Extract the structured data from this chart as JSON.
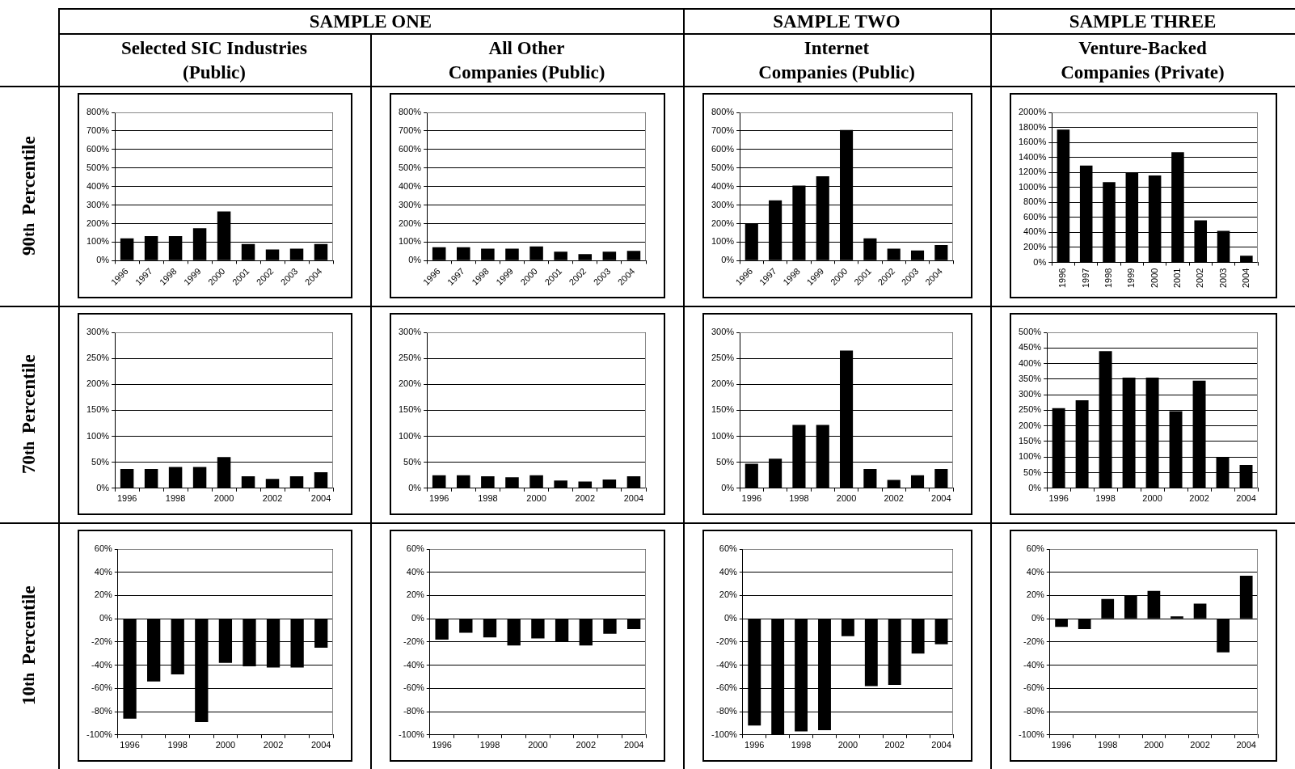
{
  "chart_data": [
    {
      "type": "other",
      "annotations": [
        "SAMPLE ONE",
        "SAMPLE TWO",
        "SAMPLE THREE",
        "Selected SIC Industries\n(Public)",
        "All Other\nCompanies (Public)",
        "Internet\nCompanies (Public)",
        "Venture-Backed\nCompanies (Private)",
        "90$^{th}$ Percentile",
        "70$^{th}$ Percentile",
        "10$^{th}$ Percentile"
      ]
    },
    {
      "type": "bar",
      "categories": [
        "1996",
        "1997",
        "1998",
        "1999",
        "2000",
        "2001",
        "2002",
        "2003",
        "2004"
      ],
      "values": [
        120,
        133,
        133,
        175,
        265,
        90,
        60,
        65,
        90
      ],
      "color": "#000000",
      "ylim": [
        0,
        800
      ],
      "yticks": [
        {
          "value": 0,
          "label": "0%"
        },
        {
          "value": 100,
          "label": "100%"
        },
        {
          "value": 200,
          "label": "200%"
        },
        {
          "value": 300,
          "label": "300%"
        },
        {
          "value": 400,
          "label": "400%"
        },
        {
          "value": 500,
          "label": "500%"
        },
        {
          "value": 600,
          "label": "600%"
        },
        {
          "value": 700,
          "label": "700%"
        },
        {
          "value": 800,
          "label": "800%"
        }
      ],
      "grid": "y"
    },
    {
      "type": "bar",
      "categories": [
        "1996",
        "1997",
        "1998",
        "1999",
        "2000",
        "2001",
        "2002",
        "2003",
        "2004"
      ],
      "values": [
        72,
        72,
        65,
        65,
        77,
        48,
        35,
        48,
        53
      ],
      "color": "#000000",
      "ylim": [
        0,
        800
      ],
      "yticks": [
        {
          "value": 0,
          "label": "0%"
        },
        {
          "value": 100,
          "label": "100%"
        },
        {
          "value": 200,
          "label": "200%"
        },
        {
          "value": 300,
          "label": "300%"
        },
        {
          "value": 400,
          "label": "400%"
        },
        {
          "value": 500,
          "label": "500%"
        },
        {
          "value": 600,
          "label": "600%"
        },
        {
          "value": 700,
          "label": "700%"
        },
        {
          "value": 800,
          "label": "800%"
        }
      ],
      "grid": "y"
    },
    {
      "type": "bar",
      "categories": [
        "1996",
        "1997",
        "1998",
        "1999",
        "2000",
        "2001",
        "2002",
        "2003",
        "2004"
      ],
      "values": [
        200,
        325,
        405,
        455,
        705,
        120,
        65,
        55,
        85
      ],
      "color": "#000000",
      "ylim": [
        0,
        800
      ],
      "yticks": [
        {
          "value": 0,
          "label": "0%"
        },
        {
          "value": 100,
          "label": "100%"
        },
        {
          "value": 200,
          "label": "200%"
        },
        {
          "value": 300,
          "label": "300%"
        },
        {
          "value": 400,
          "label": "400%"
        },
        {
          "value": 500,
          "label": "500%"
        },
        {
          "value": 600,
          "label": "600%"
        },
        {
          "value": 700,
          "label": "700%"
        },
        {
          "value": 800,
          "label": "800%"
        }
      ],
      "grid": "y"
    },
    {
      "type": "bar",
      "categories": [
        "1996",
        "1997",
        "1998",
        "1999",
        "2000",
        "2001",
        "2002",
        "2003",
        "2004"
      ],
      "values": [
        1770,
        1290,
        1070,
        1200,
        1160,
        1470,
        560,
        420,
        90
      ],
      "color": "#000000",
      "ylim": [
        0,
        2000
      ],
      "yticks": [
        {
          "value": 0,
          "label": "0%"
        },
        {
          "value": 200,
          "label": "200%"
        },
        {
          "value": 400,
          "label": "400%"
        },
        {
          "value": 600,
          "label": "600%"
        },
        {
          "value": 800,
          "label": "800%"
        },
        {
          "value": 1000,
          "label": "1000%"
        },
        {
          "value": 1200,
          "label": "1200%"
        },
        {
          "value": 1400,
          "label": "1400%"
        },
        {
          "value": 1600,
          "label": "1600%"
        },
        {
          "value": 1800,
          "label": "1800%"
        },
        {
          "value": 2000,
          "label": "2000%"
        }
      ],
      "grid": "y"
    },
    {
      "type": "bar",
      "categories": [
        "1996",
        null,
        "1998",
        null,
        "2000",
        null,
        "2002",
        null,
        "2004"
      ],
      "values": [
        37,
        37,
        41,
        41,
        60,
        23,
        18,
        23,
        31
      ],
      "color": "#000000",
      "ylim": [
        0,
        300
      ],
      "yticks": [
        {
          "value": 0,
          "label": "0%"
        },
        {
          "value": 50,
          "label": "50%"
        },
        {
          "value": 100,
          "label": "100%"
        },
        {
          "value": 150,
          "label": "150%"
        },
        {
          "value": 200,
          "label": "200%"
        },
        {
          "value": 250,
          "label": "250%"
        },
        {
          "value": 300,
          "label": "300%"
        }
      ],
      "grid": "y"
    },
    {
      "type": "bar",
      "categories": [
        "1996",
        null,
        "1998",
        null,
        "2000",
        null,
        "2002",
        null,
        "2004"
      ],
      "values": [
        25,
        25,
        23,
        21,
        25,
        15,
        13,
        17,
        23
      ],
      "color": "#000000",
      "ylim": [
        0,
        300
      ],
      "yticks": [
        {
          "value": 0,
          "label": "0%"
        },
        {
          "value": 50,
          "label": "50%"
        },
        {
          "value": 100,
          "label": "100%"
        },
        {
          "value": 150,
          "label": "150%"
        },
        {
          "value": 200,
          "label": "200%"
        },
        {
          "value": 250,
          "label": "250%"
        },
        {
          "value": 300,
          "label": "300%"
        }
      ],
      "grid": "y"
    },
    {
      "type": "bar",
      "categories": [
        "1996",
        null,
        "1998",
        null,
        "2000",
        null,
        "2002",
        null,
        "2004"
      ],
      "values": [
        47,
        57,
        122,
        122,
        265,
        37,
        16,
        25,
        37
      ],
      "color": "#000000",
      "ylim": [
        0,
        300
      ],
      "yticks": [
        {
          "value": 0,
          "label": "0%"
        },
        {
          "value": 50,
          "label": "50%"
        },
        {
          "value": 100,
          "label": "100%"
        },
        {
          "value": 150,
          "label": "150%"
        },
        {
          "value": 200,
          "label": "200%"
        },
        {
          "value": 250,
          "label": "250%"
        },
        {
          "value": 300,
          "label": "300%"
        }
      ],
      "grid": "y"
    },
    {
      "type": "bar",
      "categories": [
        "1996",
        null,
        "1998",
        null,
        "2000",
        null,
        "2002",
        null,
        "2004"
      ],
      "values": [
        257,
        282,
        440,
        355,
        355,
        247,
        345,
        100,
        75
      ],
      "color": "#000000",
      "ylim": [
        0,
        500
      ],
      "yticks": [
        {
          "value": 0,
          "label": "0%"
        },
        {
          "value": 50,
          "label": "50%"
        },
        {
          "value": 100,
          "label": "100%"
        },
        {
          "value": 150,
          "label": "150%"
        },
        {
          "value": 200,
          "label": "200%"
        },
        {
          "value": 250,
          "label": "250%"
        },
        {
          "value": 300,
          "label": "300%"
        },
        {
          "value": 350,
          "label": "350%"
        },
        {
          "value": 400,
          "label": "400%"
        },
        {
          "value": 450,
          "label": "450%"
        },
        {
          "value": 500,
          "label": "500%"
        }
      ],
      "grid": "y"
    },
    {
      "type": "bar",
      "categories": [
        "1996",
        null,
        "1998",
        null,
        "2000",
        null,
        "2002",
        null,
        "2004"
      ],
      "values": [
        -86,
        -54,
        -48,
        -89,
        -38,
        -41,
        -42,
        -42,
        -25
      ],
      "color": "#000000",
      "ylim": [
        -100,
        60
      ],
      "yticks": [
        {
          "value": -100,
          "label": "-100%"
        },
        {
          "value": -80,
          "label": "-80%"
        },
        {
          "value": -60,
          "label": "-60%"
        },
        {
          "value": -40,
          "label": "-40%"
        },
        {
          "value": -20,
          "label": "-20%"
        },
        {
          "value": 0,
          "label": "0%"
        },
        {
          "value": 20,
          "label": "20%"
        },
        {
          "value": 40,
          "label": "40%"
        },
        {
          "value": 60,
          "label": "60%"
        }
      ],
      "grid": "y"
    },
    {
      "type": "bar",
      "categories": [
        "1996",
        null,
        "1998",
        null,
        "2000",
        null,
        "2002",
        null,
        "2004"
      ],
      "values": [
        -18,
        -12,
        -16,
        -23,
        -17,
        -20,
        -23,
        -13,
        -9
      ],
      "color": "#000000",
      "ylim": [
        -100,
        60
      ],
      "yticks": [
        {
          "value": -100,
          "label": "-100%"
        },
        {
          "value": -80,
          "label": "-80%"
        },
        {
          "value": -60,
          "label": "-60%"
        },
        {
          "value": -40,
          "label": "-40%"
        },
        {
          "value": -20,
          "label": "-20%"
        },
        {
          "value": 0,
          "label": "0%"
        },
        {
          "value": 20,
          "label": "20%"
        },
        {
          "value": 40,
          "label": "40%"
        },
        {
          "value": 60,
          "label": "60%"
        }
      ],
      "grid": "y"
    },
    {
      "type": "bar",
      "categories": [
        "1996",
        null,
        "1998",
        null,
        "2000",
        null,
        "2002",
        null,
        "2004"
      ],
      "values": [
        -92,
        -100,
        -97,
        -96,
        -15,
        -58,
        -57,
        -30,
        -22
      ],
      "color": "#000000",
      "ylim": [
        -100,
        60
      ],
      "yticks": [
        {
          "value": -100,
          "label": "-100%"
        },
        {
          "value": -80,
          "label": "-80%"
        },
        {
          "value": -60,
          "label": "-60%"
        },
        {
          "value": -40,
          "label": "-40%"
        },
        {
          "value": -20,
          "label": "-20%"
        },
        {
          "value": 0,
          "label": "0%"
        },
        {
          "value": 20,
          "label": "20%"
        },
        {
          "value": 40,
          "label": "40%"
        },
        {
          "value": 60,
          "label": "60%"
        }
      ],
      "grid": "y"
    },
    {
      "type": "bar",
      "categories": [
        "1996",
        null,
        "1998",
        null,
        "2000",
        null,
        "2002",
        null,
        "2004"
      ],
      "values": [
        -7,
        -9,
        17,
        20,
        24,
        2,
        13,
        -29,
        37
      ],
      "color": "#000000",
      "ylim": [
        -100,
        60
      ],
      "yticks": [
        {
          "value": -100,
          "label": "-100%"
        },
        {
          "value": -80,
          "label": "-80%"
        },
        {
          "value": -60,
          "label": "-60%"
        },
        {
          "value": -40,
          "label": "-40%"
        },
        {
          "value": -20,
          "label": "-20%"
        },
        {
          "value": 0,
          "label": "0%"
        },
        {
          "value": 20,
          "label": "20%"
        },
        {
          "value": 40,
          "label": "40%"
        },
        {
          "value": 60,
          "label": "60%"
        }
      ],
      "grid": "y"
    }
  ]
}
